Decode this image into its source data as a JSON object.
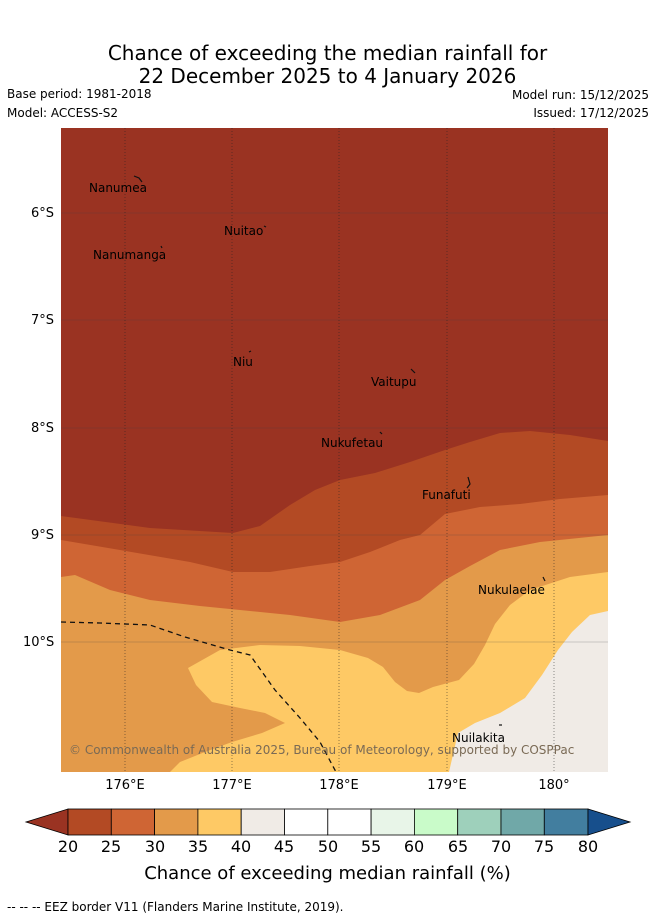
{
  "title": {
    "line1": "Chance of exceeding the median rainfall for",
    "line2": "22 December 2025 to 4 January 2026"
  },
  "header": {
    "base_period": "Base period: 1981-2018",
    "model": "Model: ACCESS-S2",
    "model_run": "Model run: 15/12/2025",
    "issued": "Issued: 17/12/2025"
  },
  "map": {
    "lat_labels": [
      "6°S",
      "7°S",
      "8°S",
      "9°S",
      "10°S"
    ],
    "lon_labels": [
      "176°E",
      "177°E",
      "178°E",
      "179°E",
      "180°"
    ],
    "places": [
      "Nanumea",
      "Nuitao",
      "Nanumanga",
      "Niu",
      "Vaitupu",
      "Nukufetau",
      "Funafuti",
      "Nukulaelae",
      "Nuilakita"
    ],
    "copyright": "© Commonwealth of Australia 2025, Bureau of Meteorology, supported by COSPPac"
  },
  "colorbar": {
    "ticks": [
      "20",
      "25",
      "30",
      "35",
      "40",
      "45",
      "50",
      "55",
      "60",
      "65",
      "70",
      "75",
      "80"
    ],
    "colors": {
      "under": "#9a3322",
      "c20_25": "#b34a24",
      "c25_30": "#cf6534",
      "c30_35": "#e39a4a",
      "c35_40": "#fec965",
      "c40_45": "#f0ebe6",
      "c45_50": "#ffffff",
      "c50_55": "#ffffff",
      "c55_60": "#e8f5e8",
      "c60_65": "#c9fbc9",
      "c65_70": "#9ed0bb",
      "c70_75": "#70a8a8",
      "c75_80": "#427e9f",
      "over": "#174f8c"
    },
    "label": "Chance of exceeding median rainfall (%)"
  },
  "footer": {
    "eez_note": "--  --  -- EEZ border V11 (Flanders Marine Institute, 2019)."
  }
}
